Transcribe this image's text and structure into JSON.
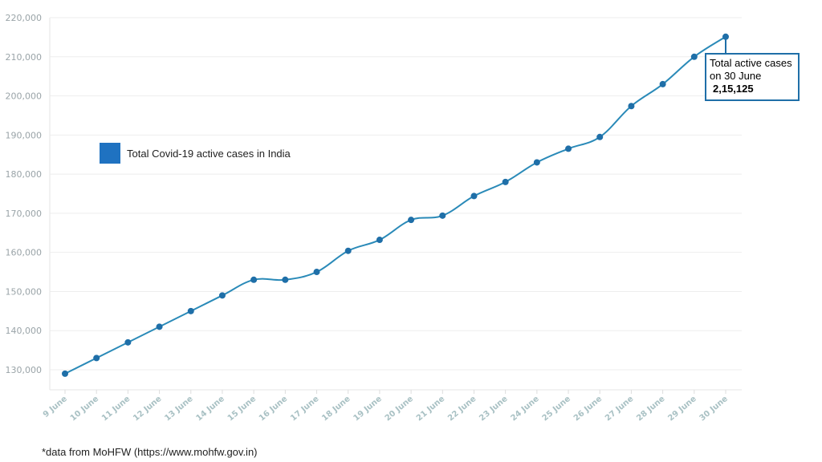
{
  "chart_data": {
    "type": "line",
    "categories": [
      "9 June",
      "10 June",
      "11 June",
      "12 June",
      "13 June",
      "14 June",
      "15 June",
      "16 June",
      "17 June",
      "18 June",
      "19 June",
      "20 June",
      "21 June",
      "22 June",
      "23 June",
      "24 June",
      "25 June",
      "26 June",
      "27 June",
      "28 June",
      "29 June",
      "30 June"
    ],
    "series": [
      {
        "name": "Total Covid-19 active cases in India",
        "color": "#2a8ab8",
        "marker_color": "#1f6fa8",
        "values": [
          129000,
          133000,
          137000,
          141000,
          145000,
          149000,
          153000,
          153000,
          155000,
          160400,
          163200,
          168300,
          169400,
          174400,
          178000,
          183000,
          186500,
          189500,
          197400,
          203000,
          210000,
          215125
        ]
      }
    ],
    "yticks": [
      "130,000",
      "140,000",
      "150,000",
      "160,000",
      "170,000",
      "180,000",
      "190,000",
      "200,000",
      "210,000",
      "220,000"
    ],
    "ytick_values": [
      130000,
      140000,
      150000,
      160000,
      170000,
      180000,
      190000,
      200000,
      210000,
      220000
    ],
    "ylim": [
      125000,
      220000
    ],
    "grid": true,
    "legend": {
      "label": "Total Covid-19 active cases in India",
      "color": "#1f72c1",
      "position": "upper-left"
    },
    "annotation": {
      "line1": "Total active cases",
      "line2": "on 30 June",
      "value": "2,15,125",
      "border_color": "#1f6fa8"
    }
  },
  "source_note": "*data from MoHFW (https://www.mohfw.gov.in)"
}
